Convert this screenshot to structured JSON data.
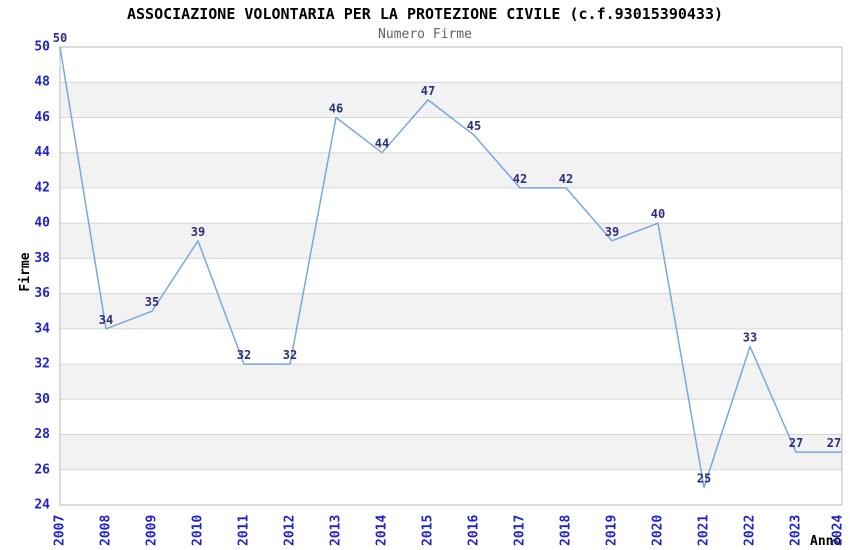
{
  "chart_data": {
    "type": "line",
    "title": "ASSOCIAZIONE VOLONTARIA PER LA PROTEZIONE CIVILE (c.f.93015390433)",
    "subtitle": "Numero Firme",
    "xlabel": "Anno",
    "ylabel": "Firme",
    "categories": [
      "2007",
      "2008",
      "2009",
      "2010",
      "2011",
      "2012",
      "2013",
      "2014",
      "2015",
      "2016",
      "2017",
      "2018",
      "2019",
      "2020",
      "2021",
      "2022",
      "2023",
      "2024"
    ],
    "series": [
      {
        "name": "Numero Firme",
        "values": [
          50,
          34,
          35,
          39,
          32,
          32,
          46,
          44,
          47,
          45,
          42,
          42,
          39,
          40,
          25,
          33,
          27,
          27
        ]
      }
    ],
    "ylim": [
      24,
      50
    ],
    "ytick_step": 2,
    "grid": true,
    "banded_background": true,
    "point_labels_visible": true,
    "legend_position": "none"
  },
  "colors": {
    "line": "#79a7e0",
    "axis_tick_label": "#2222cc",
    "point_label": "#2e2e80",
    "grid_line": "#d8d8d8",
    "plot_border": "#b9b9b9",
    "band_fill": "#f2f2f2",
    "title_text": "#000000",
    "subtitle_text": "#636363",
    "axis_title_text": "#000000",
    "background": "#ffffff"
  }
}
